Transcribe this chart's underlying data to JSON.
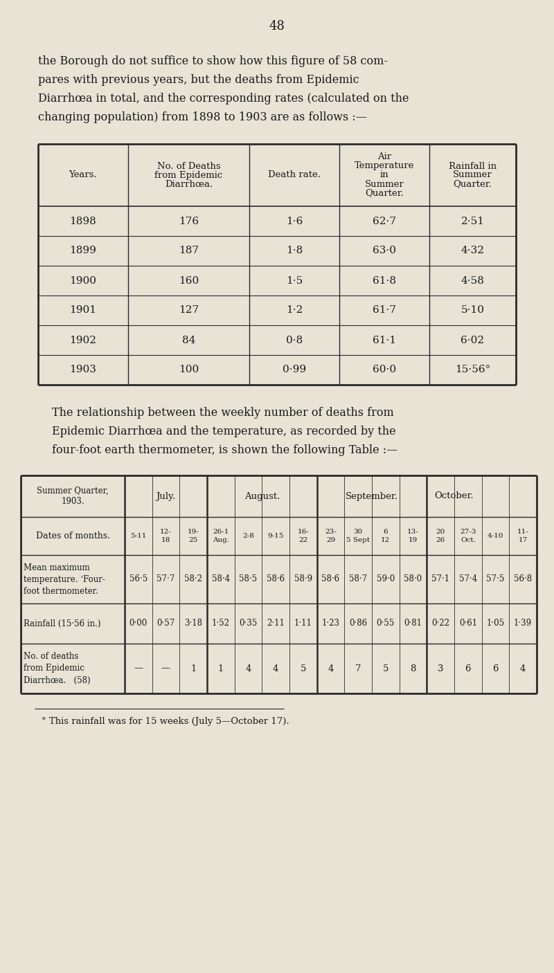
{
  "page_number": "48",
  "bg_color": "#e8e3d5",
  "text_color": "#1a1a1a",
  "intro_lines": [
    "the Borough do not suffice to show how this figure of 58 com-",
    "pares with previous years, but the deaths from Epidemic",
    "Diarrhœa in total, and the corresponding rates (calculated on the",
    "changing population) from 1898 to 1903 are as follows :—"
  ],
  "table1_headers": [
    "Years.",
    "No. of Deaths\nfrom Epidemic\nDiarrhœa.",
    "Death rate.",
    "Air\nTemperature\nin\nSummer\nQuarter.",
    "Rainfall in\nSummer\nQuarter."
  ],
  "table1_rows": [
    [
      "1898",
      "176",
      "1·6",
      "62·7",
      "2·51"
    ],
    [
      "1899",
      "187",
      "1·8",
      "63·0",
      "4·32"
    ],
    [
      "1900",
      "160",
      "1·5",
      "61·8",
      "4·58"
    ],
    [
      "1901",
      "127",
      "1·2",
      "61·7",
      "5·10"
    ],
    [
      "1902",
      "84",
      "0·8",
      "61·1",
      "6·02"
    ],
    [
      "1903",
      "100",
      "0·99",
      "60·0",
      "15·56°"
    ]
  ],
  "middle_lines": [
    "The relationship between the weekly number of deaths from",
    "Epidemic Diarrhœa and the temperature, as recorded by the",
    "four-foot earth thermometer, is shown the following Table :—"
  ],
  "table2_dates": [
    "5-11",
    "12-\n18",
    "19-\n25",
    "26-1\nAug.",
    "2-8",
    "9-15",
    "16-\n22",
    "23-\n29",
    "30\n5 Sept",
    "6\n12",
    "13-\n19",
    "20\n26",
    "27-3\nOct.",
    "4-10",
    "11-\n17"
  ],
  "table2_temps": [
    "56·5",
    "57·7",
    "58·2",
    "58·4",
    "58·5",
    "58·6",
    "58·9",
    "58·6",
    "58·7",
    "59·0",
    "58·0",
    "57·1",
    "57·4",
    "57·5",
    "56·8"
  ],
  "table2_rainfall": [
    "0·00",
    "0·57",
    "3·18",
    "1·52",
    "0·35",
    "2·11",
    "1·11",
    "1·23",
    "0·86",
    "0·55",
    "0·81",
    "0·22",
    "0·61",
    "1·05",
    "1·39"
  ],
  "table2_deaths": [
    "—",
    "—",
    "1",
    "1",
    "4",
    "4",
    "5",
    "4",
    "7",
    "5",
    "8",
    "3",
    "6",
    "6",
    "4"
  ],
  "footnote": "° This rainfall was for 15 weeks (July 5—October 17)."
}
